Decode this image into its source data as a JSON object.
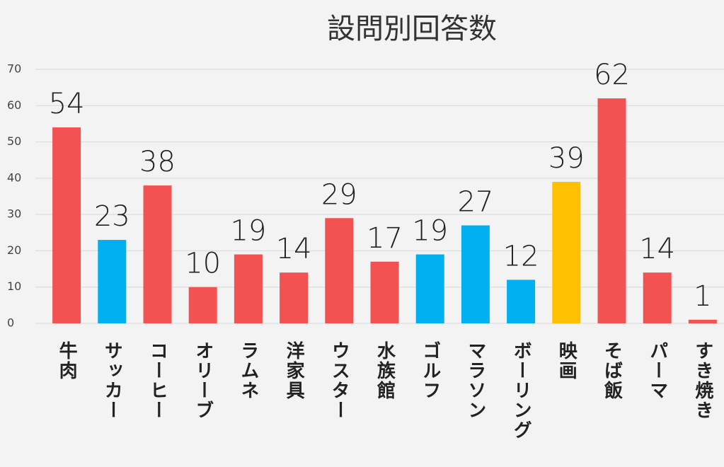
{
  "chart_data": {
    "type": "bar",
    "title": "設問別回答数",
    "categories": [
      "牛肉",
      "サッカー",
      "コーヒー",
      "オリーブ",
      "ラムネ",
      "洋家具",
      "ウスター",
      "水族館",
      "ゴルフ",
      "マラソン",
      "ボーリング",
      "映画",
      "そば飯",
      "パーマ",
      "すき焼き"
    ],
    "values": [
      54,
      23,
      38,
      10,
      19,
      14,
      29,
      17,
      19,
      27,
      12,
      39,
      62,
      14,
      1
    ],
    "colors": [
      "#f25252",
      "#00b0f0",
      "#f25252",
      "#f25252",
      "#f25252",
      "#f25252",
      "#f25252",
      "#f25252",
      "#00b0f0",
      "#00b0f0",
      "#00b0f0",
      "#ffc000",
      "#f25252",
      "#f25252",
      "#f25252"
    ],
    "ylim": [
      0,
      70
    ],
    "yticks": [
      0,
      10,
      20,
      30,
      40,
      50,
      60,
      70
    ],
    "grid": true
  }
}
